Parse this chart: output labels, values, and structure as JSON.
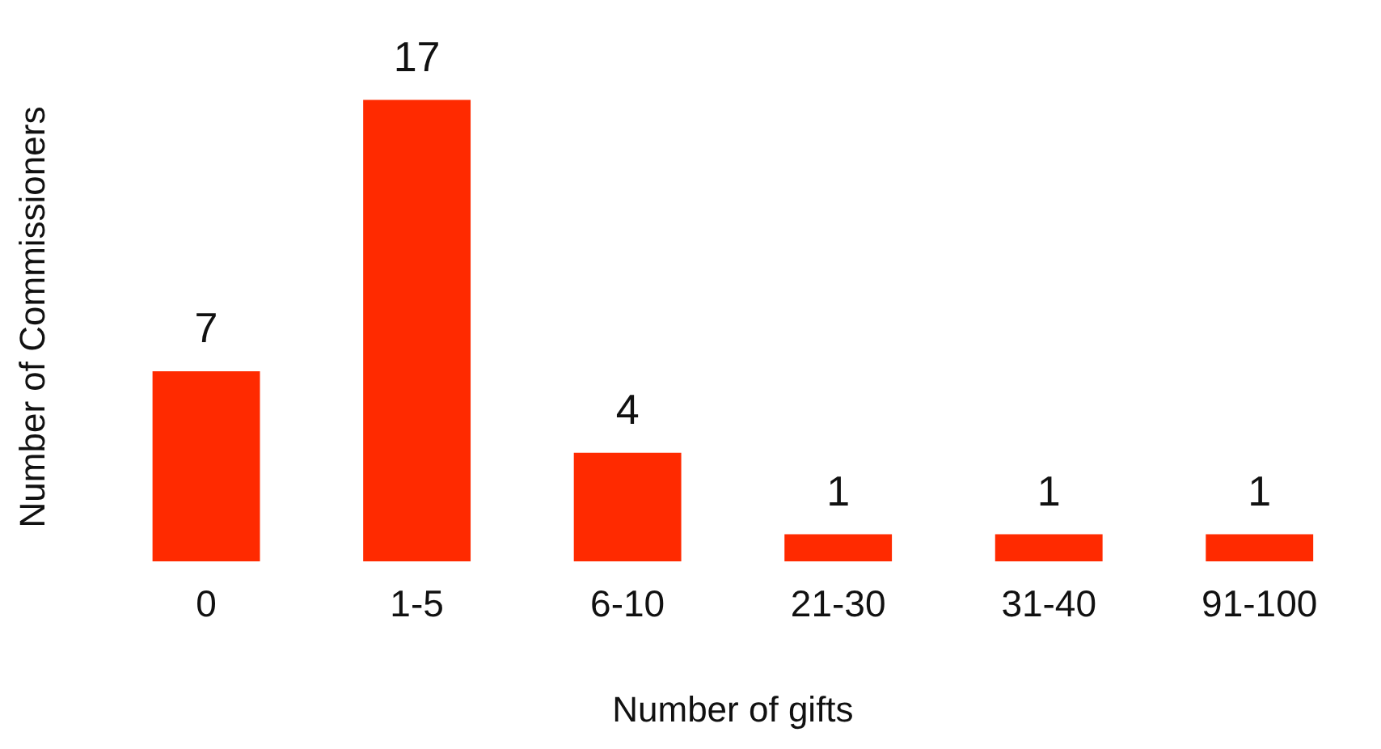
{
  "chart_data": {
    "type": "bar",
    "xlabel": "Number of gifts",
    "ylabel": "Number of Commissioners",
    "categories": [
      "0",
      "1-5",
      "6-10",
      "21-30",
      "31-40",
      "91-100"
    ],
    "values": [
      7,
      17,
      4,
      1,
      1,
      1
    ],
    "color": "#ff2a00",
    "data_labels": true,
    "grid": false,
    "tick_labels": "x"
  }
}
